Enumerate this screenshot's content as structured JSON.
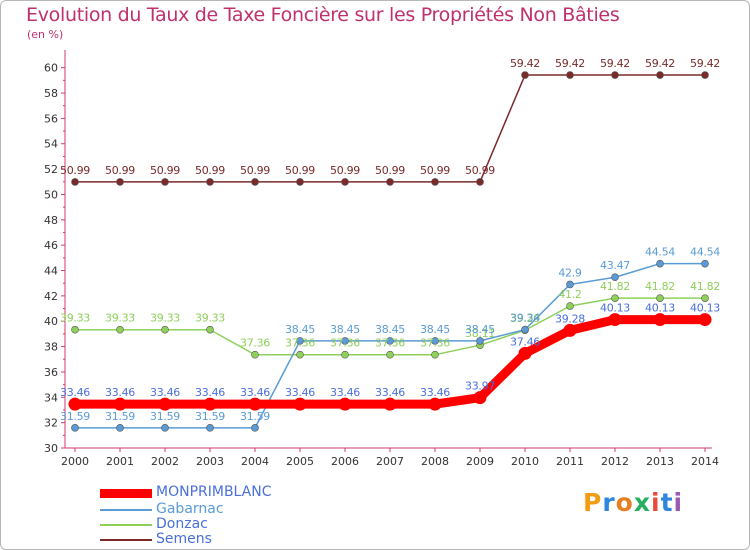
{
  "chart_data": {
    "type": "line",
    "title": "Evolution du Taux de Taxe Foncière sur les Propriétés Non Bâties",
    "ylabel": "(en %)",
    "xlabel": "",
    "x": [
      "2000",
      "2001",
      "2002",
      "2003",
      "2004",
      "2005",
      "2006",
      "2007",
      "2008",
      "2009",
      "2010",
      "2011",
      "2012",
      "2013",
      "2014"
    ],
    "ylim": [
      30,
      61
    ],
    "yticks": [
      30,
      32,
      34,
      36,
      38,
      40,
      42,
      44,
      46,
      48,
      50,
      52,
      54,
      56,
      58,
      60
    ],
    "grid": false,
    "legend_position": "bottom-left",
    "series": [
      {
        "name": "MONPRIMBLANC",
        "color": "#ff0000",
        "label_color": "#4a6fdc",
        "values": [
          33.46,
          33.46,
          33.46,
          33.46,
          33.46,
          33.46,
          33.46,
          33.46,
          33.46,
          33.97,
          37.46,
          39.28,
          40.13,
          40.13,
          40.13
        ],
        "labels": [
          "33.46",
          "33.46",
          "33.46",
          "33.46",
          "33.46",
          "33.46",
          "33.46",
          "33.46",
          "33.46",
          "33.97",
          "37.46",
          "39.28",
          "40.13",
          "40.13",
          "40.13"
        ]
      },
      {
        "name": "Gabarnac",
        "color": "#5b9bd5",
        "label_color": "#5b9bd5",
        "values": [
          31.59,
          31.59,
          31.59,
          31.59,
          31.59,
          38.45,
          38.45,
          38.45,
          38.45,
          38.45,
          39.34,
          42.9,
          43.47,
          44.54,
          44.54
        ],
        "labels": [
          "31.59",
          "31.59",
          "31.59",
          "31.59",
          "31.59",
          "38.45",
          "38.45",
          "38.45",
          "38.45",
          "38.45",
          "39.34",
          "42.9",
          "43.47",
          "44.54",
          "44.54"
        ]
      },
      {
        "name": "Donzac",
        "color": "#8ed05a",
        "label_color": "#8ed05a",
        "values": [
          39.33,
          39.33,
          39.33,
          39.33,
          37.36,
          37.36,
          37.36,
          37.36,
          37.36,
          38.11,
          39.29,
          41.2,
          41.82,
          41.82,
          41.82
        ],
        "labels": [
          "39.33",
          "39.33",
          "39.33",
          "39.33",
          "37.36",
          "37.36",
          "37.36",
          "37.36",
          "37.36",
          "38.11",
          "39.29",
          "41.2",
          "41.82",
          "41.82",
          "41.82"
        ]
      },
      {
        "name": "Semens",
        "color": "#7b2a2a",
        "label_color": "#7b2a2a",
        "values": [
          50.99,
          50.99,
          50.99,
          50.99,
          50.99,
          50.99,
          50.99,
          50.99,
          50.99,
          50.99,
          59.42,
          59.42,
          59.42,
          59.42,
          59.42
        ],
        "labels": [
          "50.99",
          "50.99",
          "50.99",
          "50.99",
          "50.99",
          "50.99",
          "50.99",
          "50.99",
          "50.99",
          "50.99",
          "59.42",
          "59.42",
          "59.42",
          "59.42",
          "59.42"
        ]
      }
    ]
  },
  "logo": {
    "letters": [
      "P",
      "r",
      "o",
      "x",
      "i",
      "t",
      "i"
    ],
    "colors": [
      "#f39c12",
      "#2e86de",
      "#e67e22",
      "#27ae60",
      "#e74c3c",
      "#2e86de",
      "#9b59b6"
    ]
  }
}
